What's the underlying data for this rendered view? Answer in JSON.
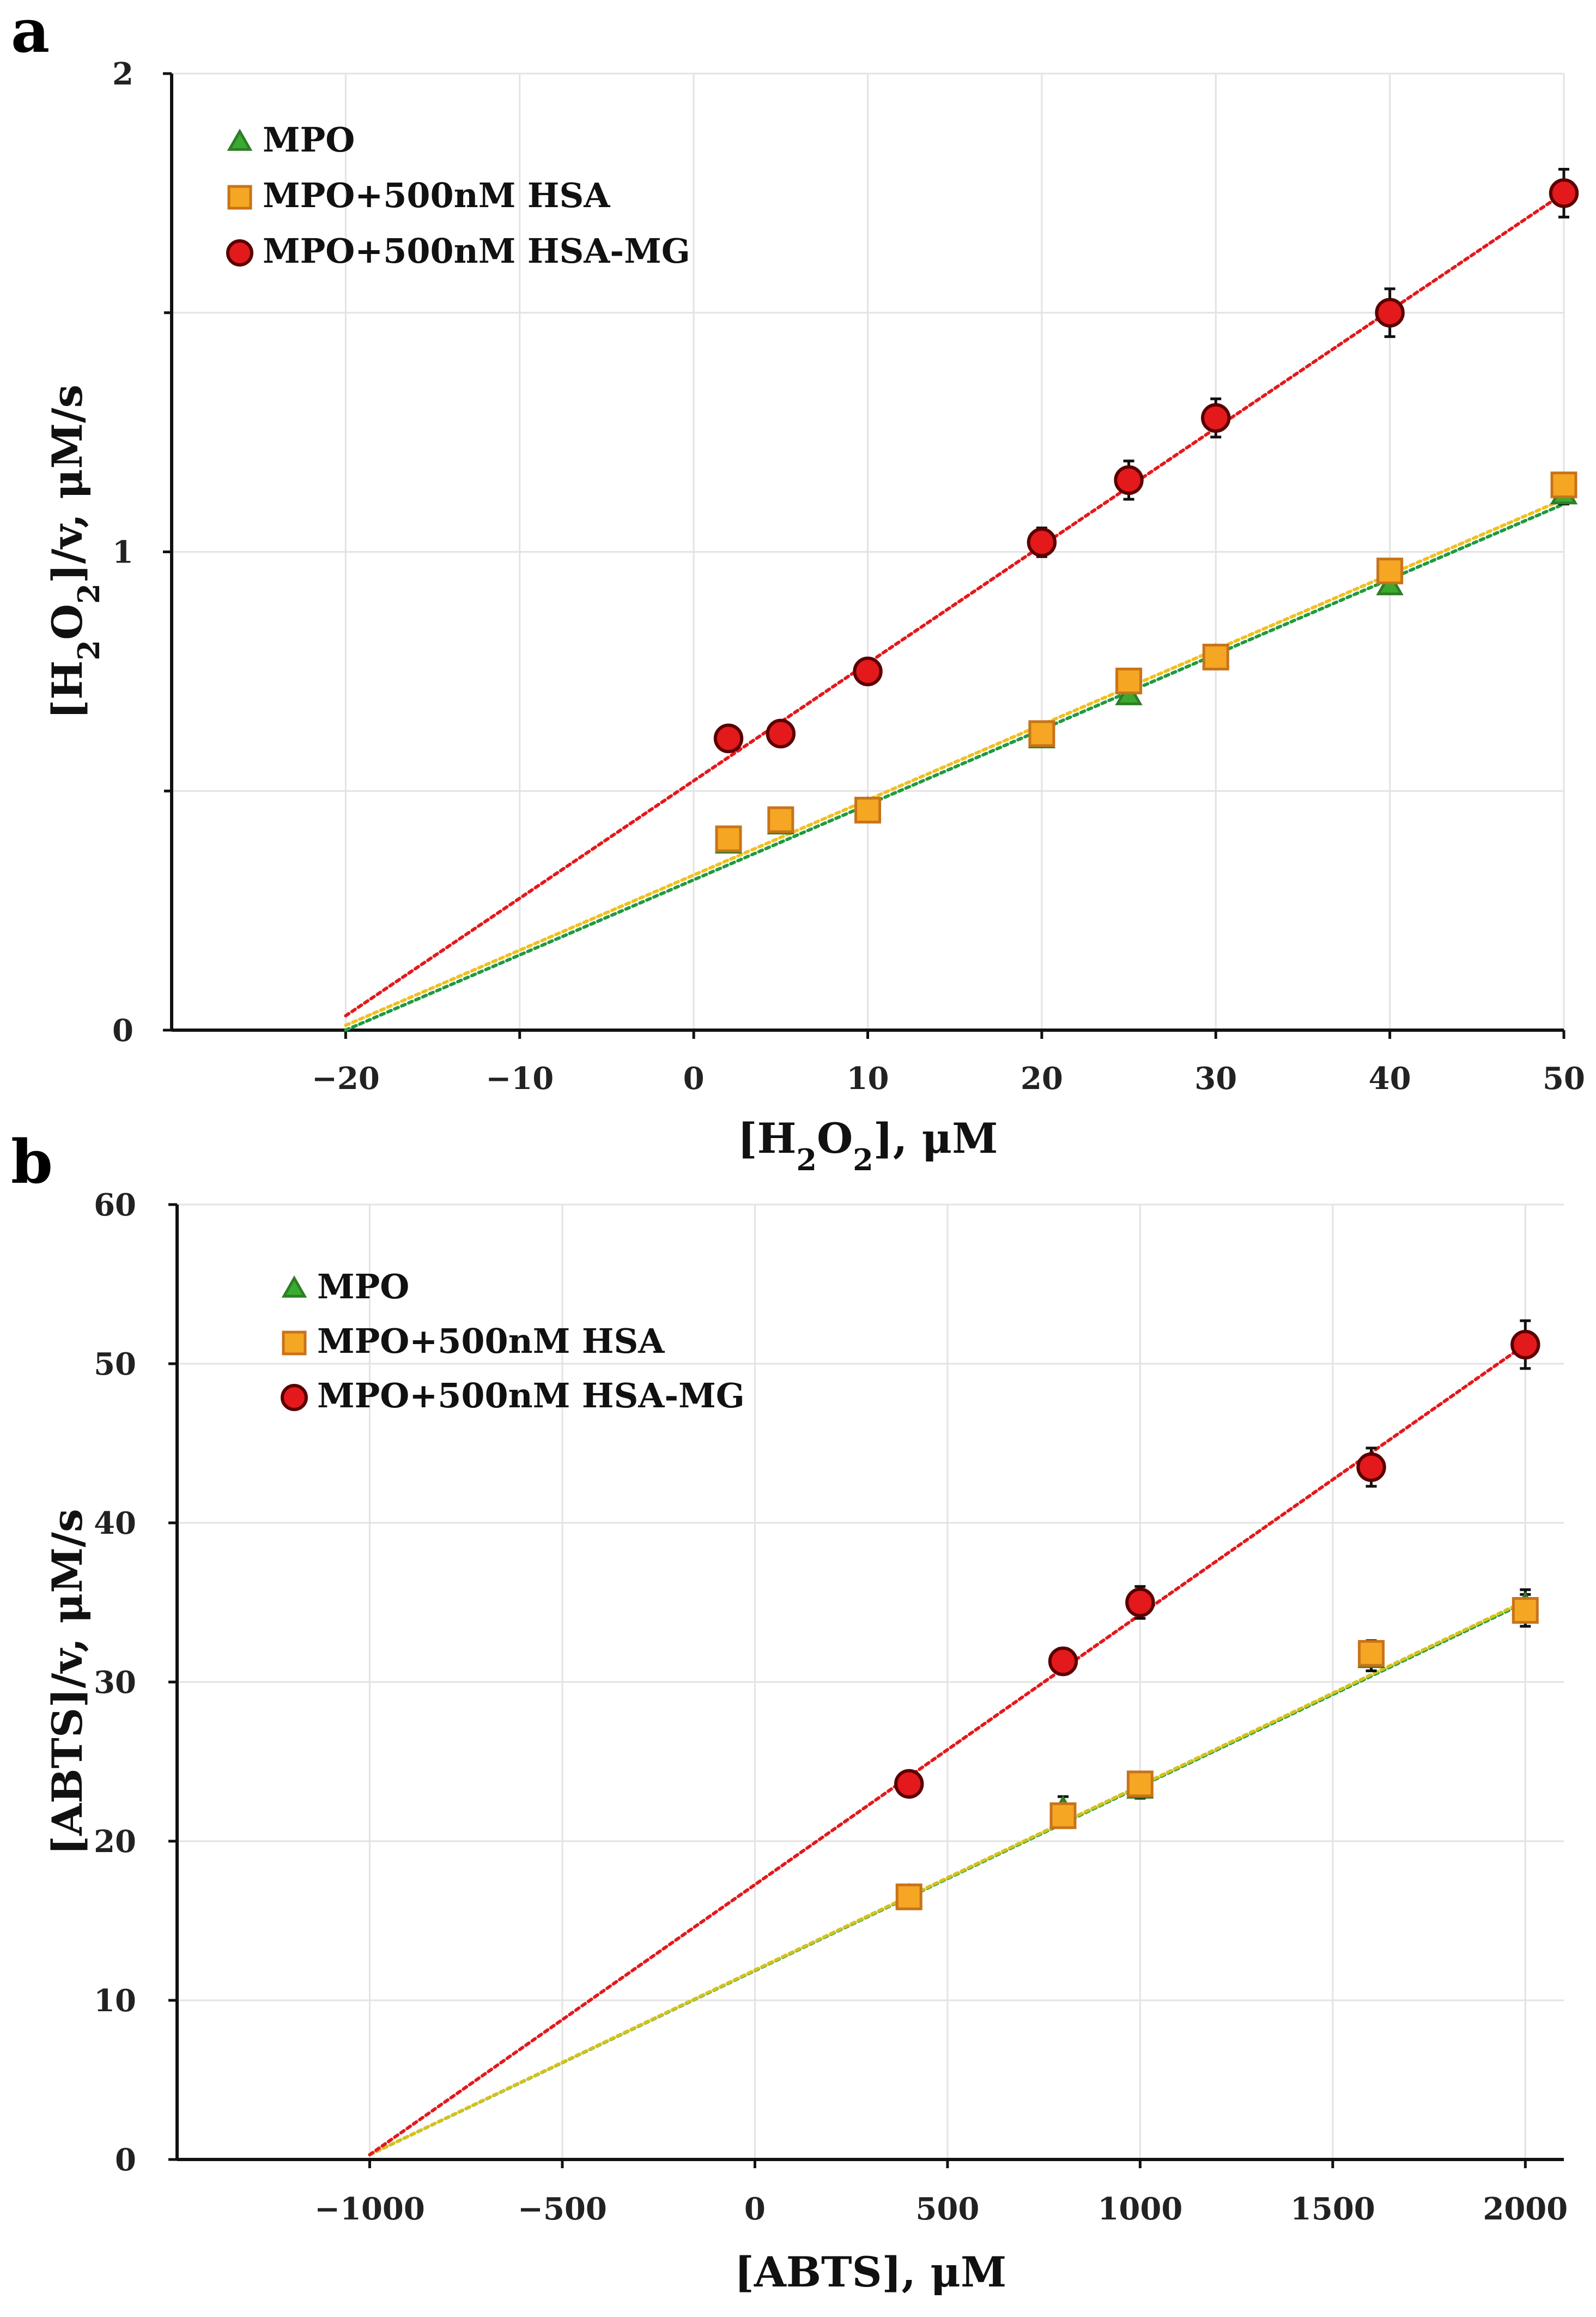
{
  "chart_data": [
    {
      "panel": "a",
      "type": "scatter",
      "xlabel_parts": [
        "[H",
        "2",
        "O",
        "2",
        "], μM"
      ],
      "ylabel_parts": [
        "[H",
        "2",
        "O",
        "2",
        "]/v, μM/s"
      ],
      "xlim": [
        -30,
        50
      ],
      "ylim": [
        0,
        2
      ],
      "xticks": [
        -20,
        -10,
        0,
        10,
        20,
        30,
        40,
        50
      ],
      "yticks": [
        0,
        1,
        2
      ],
      "minor_yticks": [
        0.5,
        1.5
      ],
      "grid": true,
      "legend_position": "top-left",
      "series": [
        {
          "name": "MPO",
          "marker": "triangle",
          "color": "#3aab2e",
          "edge": "#2f7d27",
          "line_color": "#1f9a3e",
          "x": [
            2,
            5,
            10,
            20,
            25,
            30,
            40,
            50
          ],
          "y": [
            0.39,
            0.43,
            0.46,
            0.61,
            0.7,
            0.78,
            0.93,
            1.12
          ],
          "err": [
            0.01,
            0.01,
            0.01,
            0.01,
            0.01,
            0.01,
            0.01,
            0.02
          ],
          "fit": {
            "x": [
              -20,
              50
            ],
            "y": [
              0.0,
              1.1
            ]
          }
        },
        {
          "name": "MPO+500nM HSA",
          "marker": "square",
          "color": "#f5a623",
          "edge": "#c8731a",
          "line_color": "#f0c020",
          "x": [
            2,
            5,
            10,
            20,
            25,
            30,
            40,
            50
          ],
          "y": [
            0.4,
            0.44,
            0.46,
            0.62,
            0.73,
            0.78,
            0.96,
            1.14
          ],
          "err": [
            0.01,
            0.01,
            0.01,
            0.01,
            0.01,
            0.01,
            0.02,
            0.02
          ],
          "fit": {
            "x": [
              -20,
              50
            ],
            "y": [
              0.01,
              1.11
            ]
          }
        },
        {
          "name": "MPO+500nM HSA-MG",
          "marker": "circle",
          "color": "#e3191c",
          "edge": "#5a0000",
          "line_color": "#e3191c",
          "x": [
            2,
            5,
            10,
            20,
            25,
            30,
            40,
            50
          ],
          "y": [
            0.61,
            0.62,
            0.75,
            1.02,
            1.15,
            1.28,
            1.5,
            1.75
          ],
          "err": [
            0.02,
            0.02,
            0.02,
            0.03,
            0.04,
            0.04,
            0.05,
            0.05
          ],
          "fit": {
            "x": [
              -20,
              50
            ],
            "y": [
              0.03,
              1.75
            ]
          }
        }
      ]
    },
    {
      "panel": "b",
      "type": "scatter",
      "xlabel_parts": [
        "[ABTS], μM"
      ],
      "ylabel_parts": [
        "[ABTS]/v, μM/s"
      ],
      "xlim": [
        -1500,
        2100
      ],
      "ylim": [
        0,
        60
      ],
      "xticks": [
        -1000,
        -500,
        0,
        500,
        1000,
        1500,
        2000
      ],
      "yticks": [
        0,
        10,
        20,
        30,
        40,
        50,
        60
      ],
      "minor_yticks": [],
      "grid": true,
      "legend_position": "top-left",
      "series": [
        {
          "name": "MPO",
          "marker": "triangle",
          "color": "#3aab2e",
          "edge": "#2f7d27",
          "line_color": "#1f9a3e",
          "x": [
            400,
            800,
            1000,
            1600,
            2000
          ],
          "y": [
            16.5,
            22.0,
            23.3,
            31.5,
            34.8
          ],
          "err": [
            0.5,
            0.8,
            0.6,
            0.8,
            1.0
          ],
          "fit": {
            "x": [
              -1000,
              2000
            ],
            "y": [
              0.3,
              35.0
            ]
          }
        },
        {
          "name": "MPO+500nM HSA",
          "marker": "square",
          "color": "#f5a623",
          "edge": "#c8731a",
          "line_color": "#d4c21a",
          "x": [
            400,
            800,
            1000,
            1600,
            2000
          ],
          "y": [
            16.5,
            21.6,
            23.6,
            31.8,
            34.5
          ],
          "err": [
            0.5,
            0.7,
            0.6,
            0.8,
            1.0
          ],
          "fit": {
            "x": [
              -1000,
              2000
            ],
            "y": [
              0.3,
              35.1
            ]
          }
        },
        {
          "name": "MPO+500nM HSA-MG",
          "marker": "circle",
          "color": "#e3191c",
          "edge": "#5a0000",
          "line_color": "#e3191c",
          "x": [
            400,
            800,
            1000,
            1600,
            2000
          ],
          "y": [
            23.6,
            31.3,
            35.0,
            43.5,
            51.2
          ],
          "err": [
            0.4,
            0.8,
            1.0,
            1.2,
            1.5
          ],
          "fit": {
            "x": [
              -1000,
              2000
            ],
            "y": [
              0.3,
              51.2
            ]
          }
        }
      ]
    }
  ]
}
